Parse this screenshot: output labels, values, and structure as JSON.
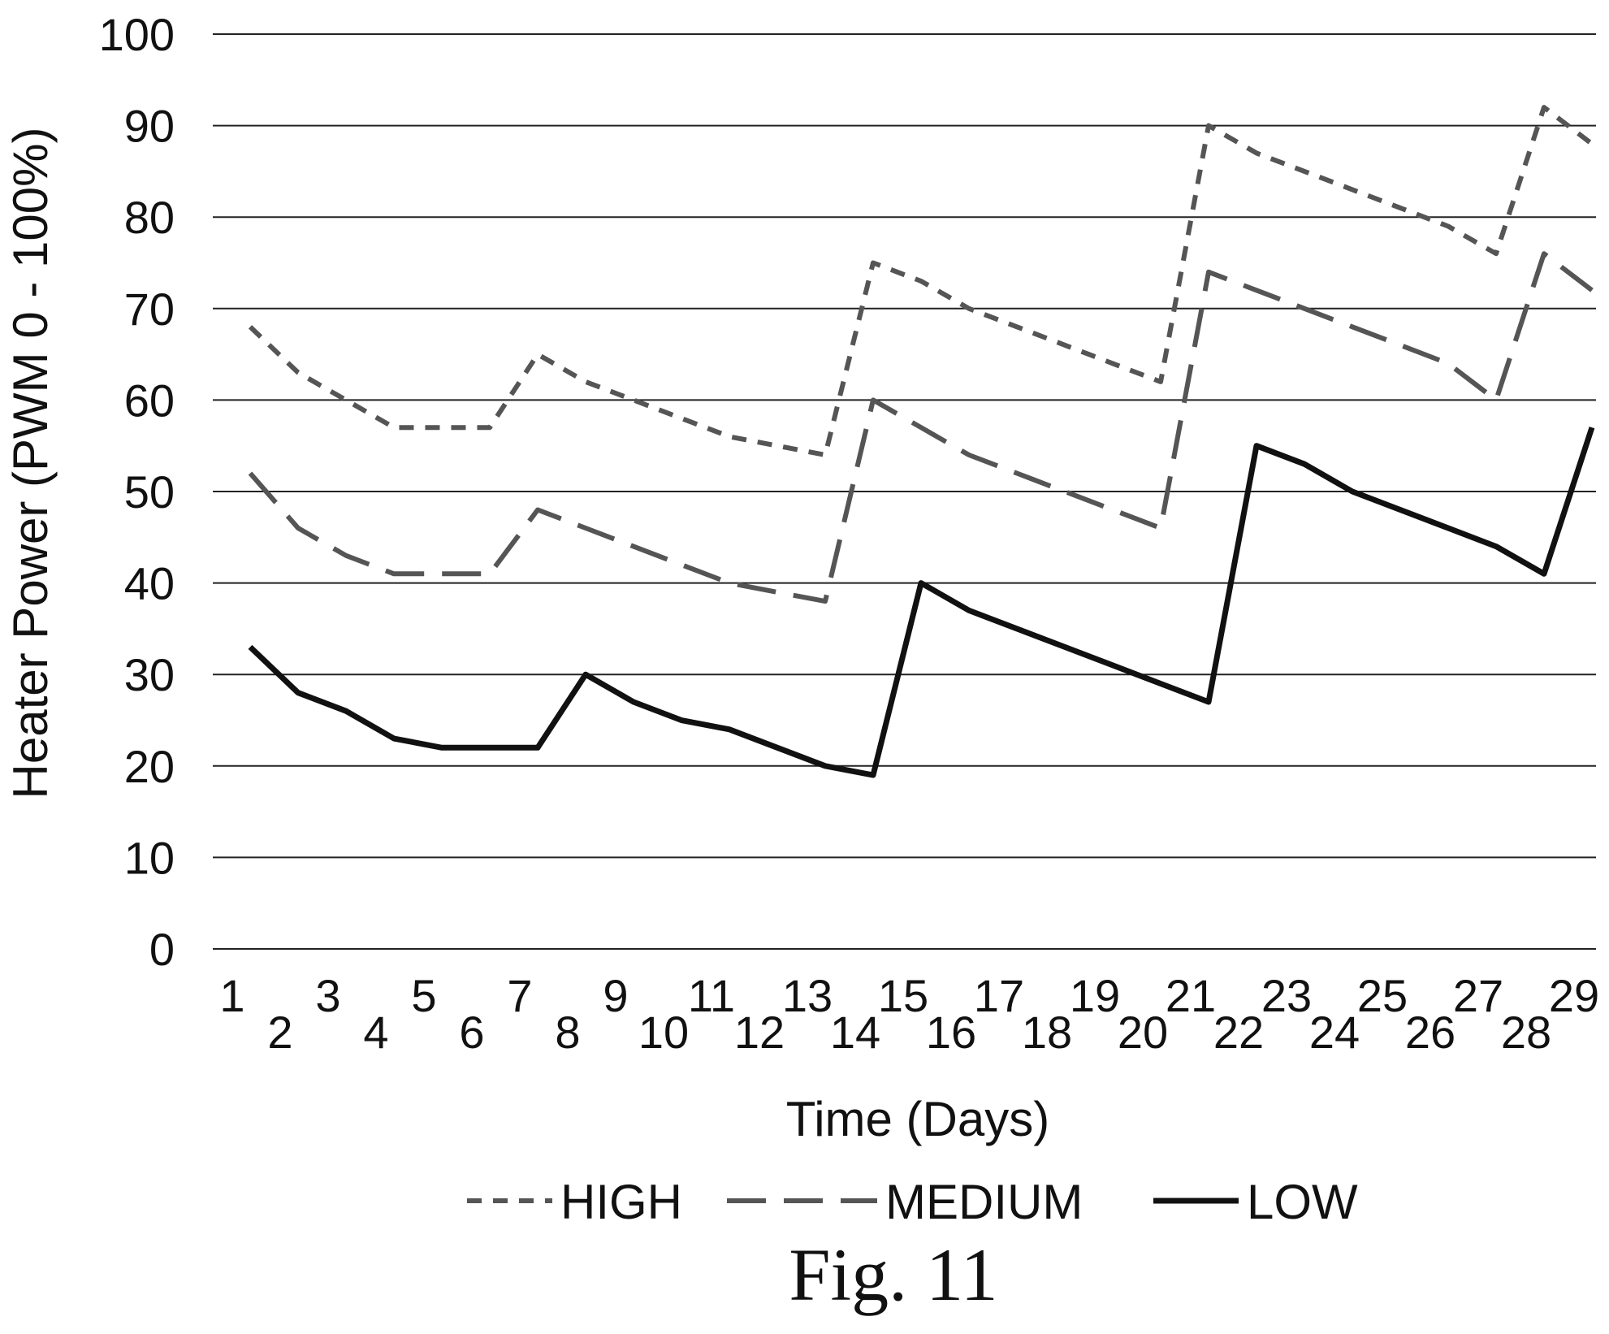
{
  "chart_data": {
    "type": "line",
    "xlabel": "Time (Days)",
    "ylabel": "Heater Power (PWM 0 - 100%)",
    "ylim": [
      0,
      100
    ],
    "yticks": [
      0,
      10,
      20,
      30,
      40,
      50,
      60,
      70,
      80,
      90,
      100
    ],
    "xlim": [
      1,
      29
    ],
    "x": [
      1,
      2,
      3,
      4,
      5,
      6,
      7,
      8,
      9,
      10,
      11,
      12,
      13,
      14,
      15,
      16,
      17,
      18,
      19,
      20,
      21,
      22,
      23,
      24,
      25,
      26,
      27,
      28,
      29
    ],
    "grid": "horizontal",
    "legend_position": "bottom",
    "series": [
      {
        "name": "HIGH",
        "style": "short-dash",
        "color": "#555555",
        "values": [
          68,
          63,
          60,
          57,
          57,
          57,
          65,
          62,
          60,
          58,
          56,
          55,
          54,
          75,
          73,
          70,
          68,
          66,
          64,
          62,
          90,
          87,
          85,
          83,
          81,
          79,
          76,
          92,
          88
        ]
      },
      {
        "name": "MEDIUM",
        "style": "long-dash",
        "color": "#555555",
        "values": [
          52,
          46,
          43,
          41,
          41,
          41,
          48,
          46,
          44,
          42,
          40,
          39,
          38,
          60,
          57,
          54,
          52,
          50,
          48,
          46,
          74,
          72,
          70,
          68,
          66,
          64,
          60,
          76,
          72
        ]
      },
      {
        "name": "LOW",
        "style": "solid",
        "color": "#111111",
        "values": [
          33,
          28,
          26,
          23,
          22,
          22,
          22,
          30,
          27,
          25,
          24,
          22,
          20,
          19,
          40,
          37,
          35,
          33,
          31,
          29,
          27,
          55,
          53,
          50,
          48,
          46,
          44,
          41,
          57
        ]
      }
    ]
  },
  "caption": "Fig. 11"
}
